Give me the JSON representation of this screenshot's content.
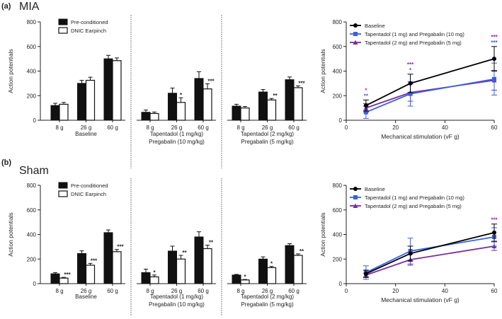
{
  "panels": [
    {
      "label": "(a)",
      "name": "MIA",
      "bar_chart": {
        "type": "bar",
        "ylabel": "Action potentials",
        "ylim": [
          0,
          800
        ],
        "yticks": [
          0,
          200,
          400,
          600,
          800
        ],
        "legend": [
          "Pre-conditioned",
          "DNIC Earpinch"
        ],
        "colors": {
          "pre": "#111111",
          "dnic": "#ffffff"
        },
        "categories": [
          "8 g",
          "26 g",
          "60 g"
        ],
        "groups": [
          {
            "label_lines": [
              "Baseline"
            ],
            "pre": [
              120,
              300,
              500
            ],
            "pre_err": [
              18,
              25,
              28
            ],
            "dnic": [
              130,
              325,
              485
            ],
            "dnic_err": [
              15,
              25,
              22
            ],
            "stars": [
              "",
              "",
              ""
            ]
          },
          {
            "label_lines": [
              "Tapentadol (1 mg/kg)",
              "Pregabalin (10 mg/kg)"
            ],
            "pre": [
              65,
              220,
              340
            ],
            "pre_err": [
              18,
              42,
              55
            ],
            "dnic": [
              55,
              145,
              255
            ],
            "dnic_err": [
              12,
              38,
              42
            ],
            "stars": [
              "",
              "*",
              "***"
            ]
          },
          {
            "label_lines": [
              "Tapentadol (2 mg/kg)",
              "Pregabalin (5 mg/kg)"
            ],
            "pre": [
              115,
              230,
              330
            ],
            "pre_err": [
              15,
              20,
              22
            ],
            "dnic": [
              100,
              165,
              265
            ],
            "dnic_err": [
              12,
              12,
              15
            ],
            "stars": [
              "",
              "**",
              "***"
            ]
          }
        ]
      },
      "line_chart": {
        "type": "line",
        "xlabel": "Mechanical stimulation (vF g)",
        "ylabel": "Action potentials",
        "xlim": [
          0,
          60
        ],
        "ylim": [
          0,
          800
        ],
        "xticks": [
          0,
          20,
          40,
          60
        ],
        "yticks": [
          0,
          200,
          400,
          600,
          800
        ],
        "x": [
          8,
          26,
          60
        ],
        "series": [
          {
            "name": "Baseline",
            "color": "#000000",
            "marker": "circle",
            "values": [
              120,
              300,
              500
            ],
            "err": [
              45,
              75,
              100
            ]
          },
          {
            "name": "Tapentadol (1 mg) and Pregabalin (10 mg)",
            "color": "#3b5fe0",
            "marker": "square",
            "values": [
              65,
              215,
              335
            ],
            "err": [
              50,
              100,
              130
            ]
          },
          {
            "name": "Tapentadol (2 mg) and Pregabalin (5 mg)",
            "color": "#7b2d9c",
            "marker": "triangle",
            "values": [
              100,
              225,
              325
            ],
            "err": [
              35,
              70,
              80
            ]
          }
        ],
        "annotations": [
          {
            "x": 8,
            "lines": [
              {
                "text": "*",
                "color": "#c0208a"
              },
              {
                "text": "**",
                "color": "#3b5fe0"
              }
            ]
          },
          {
            "x": 26,
            "lines": [
              {
                "text": "***",
                "color": "#9b1fa8"
              },
              {
                "text": "*",
                "color": "#3b5fe0"
              }
            ]
          },
          {
            "x": 60,
            "lines": [
              {
                "text": "***",
                "color": "#9b1fa8"
              },
              {
                "text": "***",
                "color": "#3b5fe0"
              }
            ]
          }
        ]
      }
    },
    {
      "label": "(b)",
      "name": "Sham",
      "bar_chart": {
        "type": "bar",
        "ylabel": "Action potentials",
        "ylim": [
          0,
          800
        ],
        "yticks": [
          0,
          200,
          400,
          600,
          800
        ],
        "legend": [
          "Pre-conditioned",
          "DNIC Earpinch"
        ],
        "colors": {
          "pre": "#111111",
          "dnic": "#ffffff"
        },
        "categories": [
          "8 g",
          "26 g",
          "60 g"
        ],
        "groups": [
          {
            "label_lines": [
              "Baseline"
            ],
            "pre": [
              80,
              245,
              415
            ],
            "pre_err": [
              10,
              22,
              22
            ],
            "dnic": [
              45,
              150,
              260
            ],
            "dnic_err": [
              6,
              15,
              18
            ],
            "stars": [
              "***",
              "***",
              "***"
            ]
          },
          {
            "label_lines": [
              "Tapentadol (1 mg/kg)",
              "Pregabalin (10 mg/kg)"
            ],
            "pre": [
              90,
              265,
              380
            ],
            "pre_err": [
              28,
              40,
              42
            ],
            "dnic": [
              55,
              200,
              285
            ],
            "dnic_err": [
              15,
              30,
              28
            ],
            "stars": [
              "*",
              "**",
              "**"
            ]
          },
          {
            "label_lines": [
              "Tapentadol (2 mg/kg)",
              "Pregabalin (5 mg/kg)"
            ],
            "pre": [
              70,
              200,
              310
            ],
            "pre_err": [
              5,
              18,
              15
            ],
            "dnic": [
              30,
              130,
              230
            ],
            "dnic_err": [
              4,
              10,
              12
            ],
            "stars": [
              "*",
              "*",
              "**"
            ]
          }
        ]
      },
      "line_chart": {
        "type": "line",
        "xlabel": "Mechanical stimulation (vF g)",
        "ylabel": "Action potentials",
        "xlim": [
          0,
          60
        ],
        "ylim": [
          0,
          800
        ],
        "xticks": [
          0,
          20,
          40,
          60
        ],
        "yticks": [
          0,
          200,
          400,
          600,
          800
        ],
        "x": [
          8,
          26,
          60
        ],
        "series": [
          {
            "name": "Baseline",
            "color": "#000000",
            "marker": "circle",
            "values": [
              80,
              245,
              415
            ],
            "err": [
              30,
              60,
              70
            ]
          },
          {
            "name": "Tapentadol (1 mg) and Pregabalin (10 mg)",
            "color": "#3b5fe0",
            "marker": "square",
            "values": [
              90,
              265,
              380
            ],
            "err": [
              55,
              105,
              75
            ]
          },
          {
            "name": "Tapentadol (2 mg) and Pregabalin (5 mg)",
            "color": "#7b2d9c",
            "marker": "triangle",
            "values": [
              70,
              195,
              305
            ],
            "err": [
              15,
              45,
              35
            ]
          }
        ],
        "annotations": [
          {
            "x": 60,
            "lines": [
              {
                "text": "***",
                "color": "#9b1fa8"
              }
            ]
          }
        ]
      }
    }
  ]
}
